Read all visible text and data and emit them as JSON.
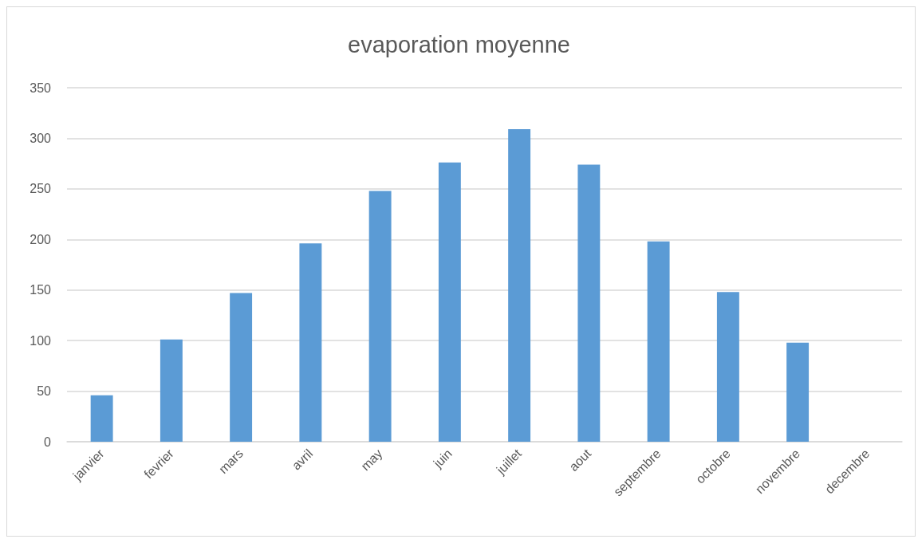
{
  "chart_data": {
    "type": "bar",
    "title": "evaporation moyenne",
    "categories": [
      "janvier",
      "fevrier",
      "mars",
      "avril",
      "may",
      "juin",
      "juillet",
      "aout",
      "septembre",
      "octobre",
      "novembre",
      "decembre"
    ],
    "values": [
      46,
      101,
      147,
      196,
      248,
      276,
      309,
      274,
      198,
      148,
      98,
      null
    ],
    "color": "#5b9bd5",
    "ylim": [
      0,
      350
    ],
    "yticks": [
      0,
      50,
      100,
      150,
      200,
      250,
      300,
      350
    ],
    "grid": true
  }
}
